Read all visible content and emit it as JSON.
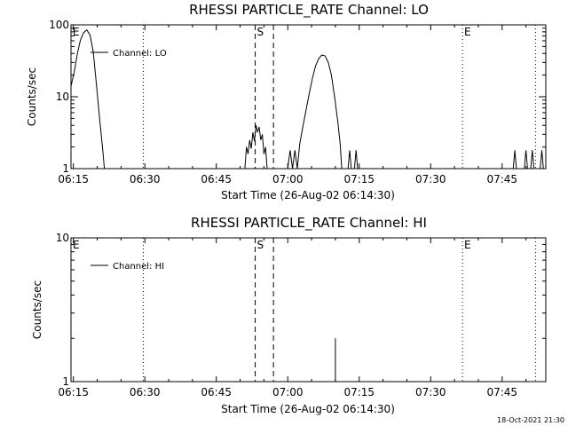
{
  "colors": {
    "background": "#ffffff",
    "foreground": "#000000"
  },
  "footer": {
    "timestamp": "18-Oct-2021 21:30"
  },
  "chart_data": [
    {
      "type": "line",
      "title": "RHESSI PARTICLE_RATE Channel: LO",
      "xlabel": "Start Time (26-Aug-02 06:14:30)",
      "ylabel": "Counts/sec",
      "yscale": "log",
      "ylim": [
        1,
        100
      ],
      "xlim": [
        "06:14:30",
        "07:54:10"
      ],
      "x_ticks": [
        "06:15",
        "06:30",
        "06:45",
        "07:00",
        "07:15",
        "07:30",
        "07:45"
      ],
      "y_ticks": [
        "1",
        "10",
        "100"
      ],
      "legend": {
        "position": "top-left",
        "entries": [
          "Channel: LO"
        ]
      },
      "markers": [
        {
          "label": "E",
          "time": "06:14:30",
          "style": "dotted"
        },
        {
          "label": "",
          "time": "06:29:40",
          "style": "dotted"
        },
        {
          "label": "S",
          "time": "06:53:10",
          "style": "dashed"
        },
        {
          "label": "",
          "time": "06:57:00",
          "style": "dashed"
        },
        {
          "label": "E",
          "time": "07:36:40",
          "style": "dotted"
        },
        {
          "label": "",
          "time": "07:52:00",
          "style": "dotted"
        }
      ],
      "series": [
        {
          "name": "Channel: LO",
          "segments": [
            [
              [
                "06:14:30",
                14
              ],
              [
                "06:15:10",
                22
              ],
              [
                "06:15:50",
                40
              ],
              [
                "06:16:30",
                62
              ],
              [
                "06:17:10",
                78
              ],
              [
                "06:17:50",
                85
              ],
              [
                "06:18:30",
                72
              ],
              [
                "06:19:10",
                42
              ],
              [
                "06:19:50",
                15
              ],
              [
                "06:20:30",
                5
              ],
              [
                "06:21:10",
                1.8
              ],
              [
                "06:21:30",
                1
              ]
            ],
            [
              [
                "06:51:00",
                1
              ],
              [
                "06:51:20",
                2
              ],
              [
                "06:51:40",
                1.6
              ],
              [
                "06:52:00",
                2.5
              ],
              [
                "06:52:20",
                1.9
              ],
              [
                "06:52:40",
                3.2
              ],
              [
                "06:53:00",
                2.4
              ],
              [
                "06:53:20",
                4.0
              ],
              [
                "06:53:40",
                3.2
              ],
              [
                "06:54:00",
                3.8
              ],
              [
                "06:54:20",
                2.5
              ],
              [
                "06:54:40",
                3.0
              ],
              [
                "06:55:00",
                1.6
              ],
              [
                "06:55:20",
                2.0
              ],
              [
                "06:55:40",
                1
              ]
            ],
            [
              [
                "07:00:00",
                1
              ],
              [
                "07:00:30",
                1.8
              ],
              [
                "07:01:00",
                1
              ],
              [
                "07:01:30",
                1.8
              ],
              [
                "07:02:00",
                1
              ],
              [
                "07:02:30",
                2.2
              ],
              [
                "07:03:10",
                3.8
              ],
              [
                "07:03:50",
                6.5
              ],
              [
                "07:04:30",
                11
              ],
              [
                "07:05:10",
                18
              ],
              [
                "07:05:50",
                27
              ],
              [
                "07:06:30",
                34
              ],
              [
                "07:07:10",
                38
              ],
              [
                "07:07:50",
                37
              ],
              [
                "07:08:30",
                30
              ],
              [
                "07:09:10",
                20
              ],
              [
                "07:09:50",
                10
              ],
              [
                "07:10:30",
                4.5
              ],
              [
                "07:11:00",
                2.2
              ],
              [
                "07:11:20",
                1
              ]
            ],
            [
              [
                "07:12:40",
                1
              ],
              [
                "07:13:00",
                1.8
              ],
              [
                "07:13:20",
                1
              ]
            ],
            [
              [
                "07:14:00",
                1
              ],
              [
                "07:14:20",
                1.8
              ],
              [
                "07:14:40",
                1
              ]
            ],
            [
              [
                "07:47:20",
                1
              ],
              [
                "07:47:40",
                1.8
              ],
              [
                "07:48:00",
                1
              ]
            ],
            [
              [
                "07:49:40",
                1
              ],
              [
                "07:50:00",
                1.8
              ],
              [
                "07:50:20",
                1
              ]
            ],
            [
              [
                "07:51:00",
                1
              ],
              [
                "07:51:20",
                1.8
              ],
              [
                "07:51:40",
                1
              ]
            ],
            [
              [
                "07:53:00",
                1
              ],
              [
                "07:53:20",
                1.8
              ],
              [
                "07:53:40",
                1
              ]
            ]
          ]
        }
      ]
    },
    {
      "type": "line",
      "title": "RHESSI PARTICLE_RATE Channel: HI",
      "xlabel": "Start Time (26-Aug-02 06:14:30)",
      "ylabel": "Counts/sec",
      "yscale": "log",
      "ylim": [
        1,
        10
      ],
      "xlim": [
        "06:14:30",
        "07:54:10"
      ],
      "x_ticks": [
        "06:15",
        "06:30",
        "06:45",
        "07:00",
        "07:15",
        "07:30",
        "07:45"
      ],
      "y_ticks": [
        "1",
        "10"
      ],
      "legend": {
        "position": "top-left",
        "entries": [
          "Channel: HI"
        ]
      },
      "markers": [
        {
          "label": "E",
          "time": "06:14:30",
          "style": "dotted"
        },
        {
          "label": "",
          "time": "06:29:40",
          "style": "dotted"
        },
        {
          "label": "S",
          "time": "06:53:10",
          "style": "dashed"
        },
        {
          "label": "",
          "time": "06:57:00",
          "style": "dashed"
        },
        {
          "label": "E",
          "time": "07:36:40",
          "style": "dotted"
        },
        {
          "label": "",
          "time": "07:52:00",
          "style": "dotted"
        }
      ],
      "series": [
        {
          "name": "Channel: HI",
          "segments": [
            [
              [
                "07:10:00",
                1
              ],
              [
                "07:10:00",
                2
              ]
            ]
          ]
        }
      ]
    }
  ]
}
